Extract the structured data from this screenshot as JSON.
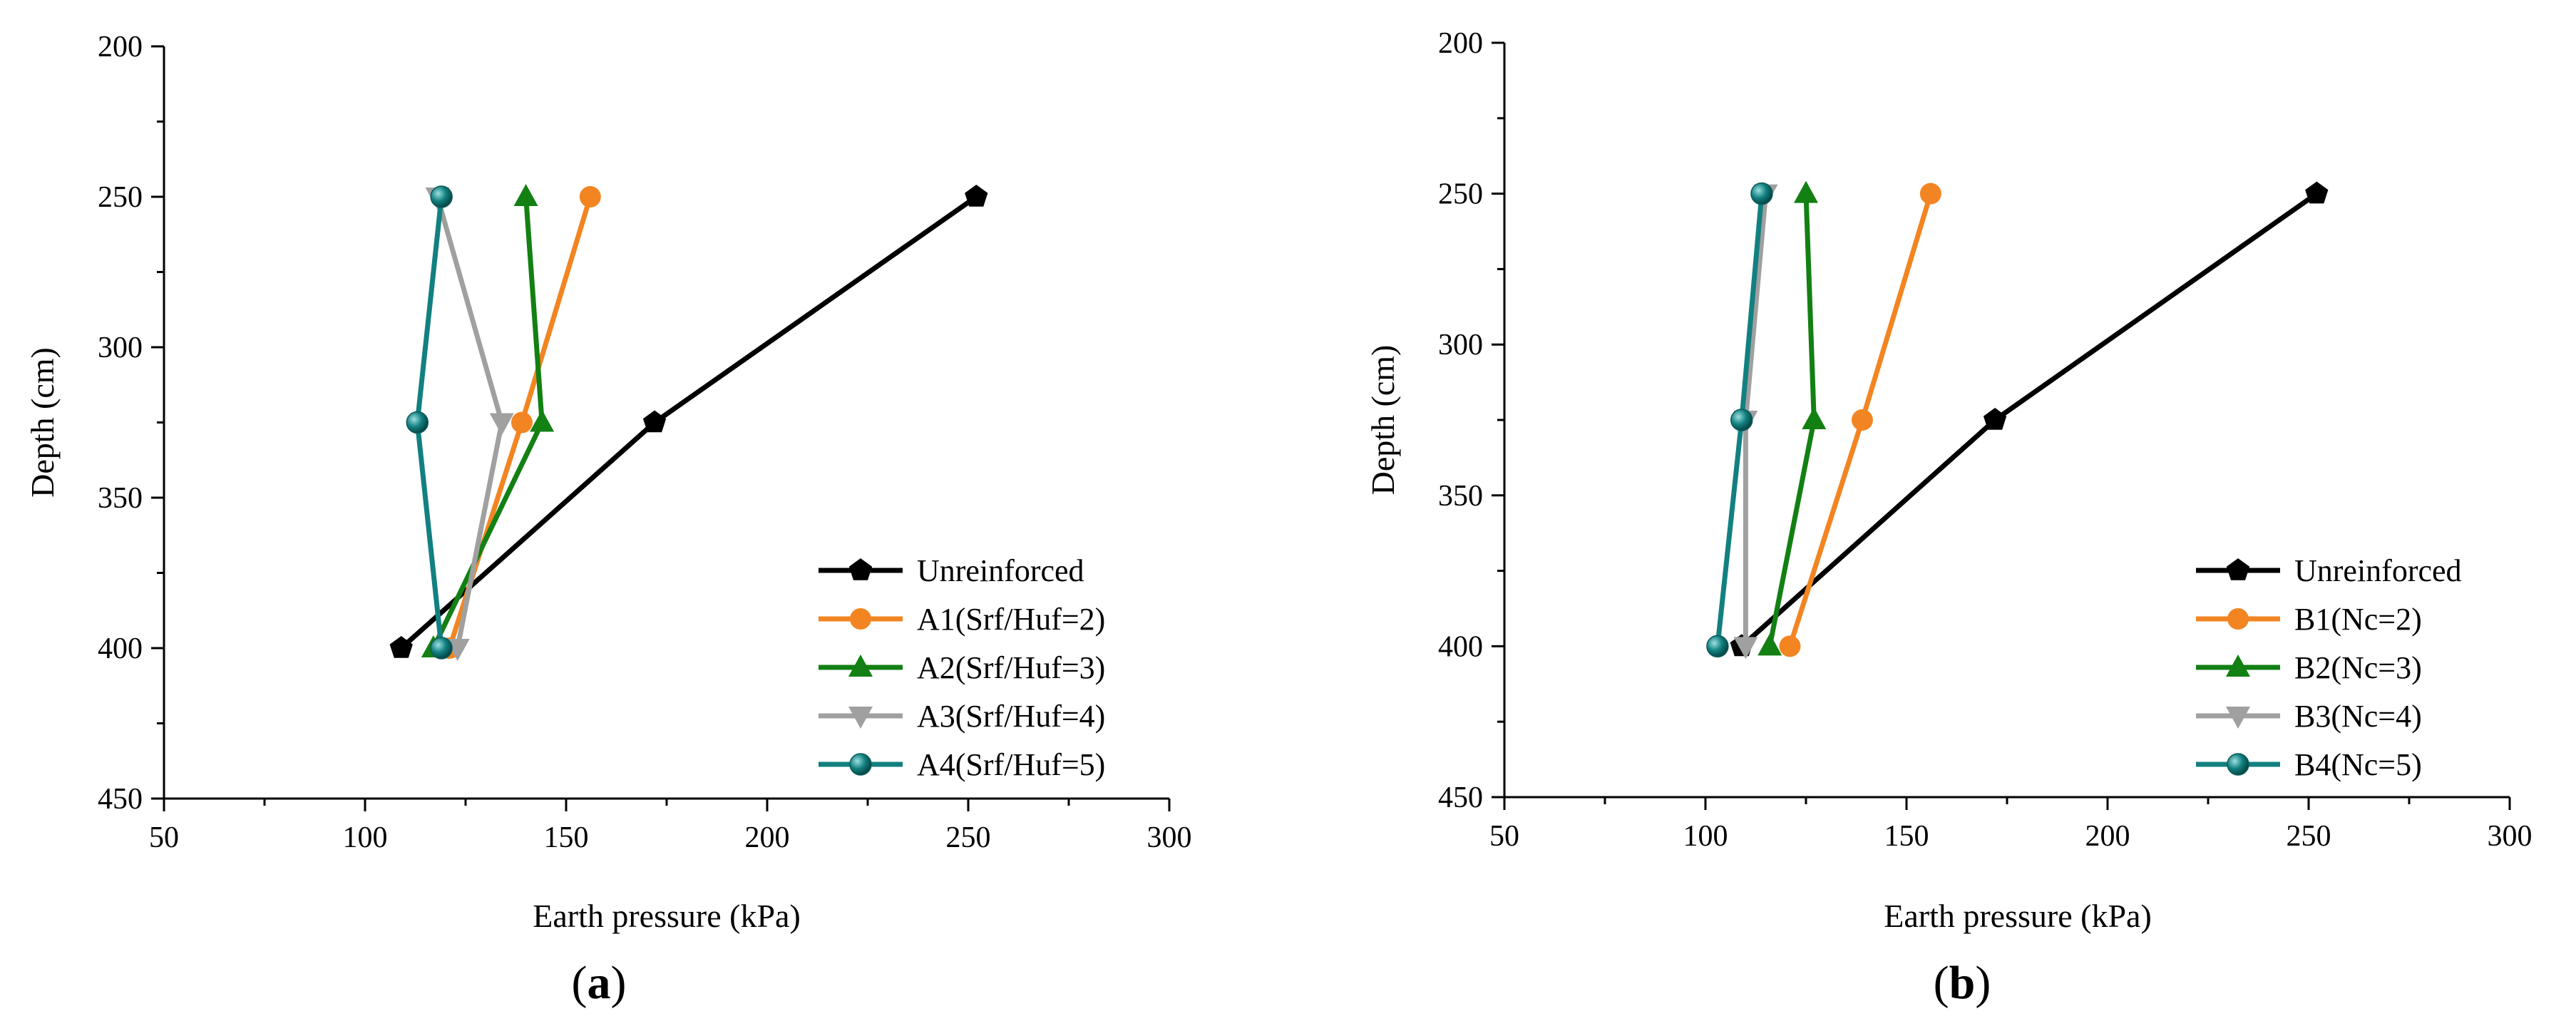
{
  "chart_data": [
    {
      "type": "line",
      "panel_label_open": "(",
      "panel_label_letter": "a",
      "panel_label_close": ")",
      "xlabel": "Earth pressure (kPa)",
      "ylabel": "Depth (cm)",
      "xlim": [
        50,
        300
      ],
      "ylim": [
        200,
        450
      ],
      "y_inverted": true,
      "xticks": [
        50,
        100,
        150,
        200,
        250,
        300
      ],
      "yticks": [
        200,
        250,
        300,
        350,
        400,
        450
      ],
      "legend_position": "bottom-right",
      "series": [
        {
          "name": "Unreinforced",
          "color": "#000000",
          "marker": "pentagon",
          "x": [
            252,
            172,
            109
          ],
          "y": [
            250,
            325,
            400
          ]
        },
        {
          "name": "A1(Srf/Huf=2)",
          "color": "#F28522",
          "marker": "circle",
          "x": [
            156,
            139,
            121
          ],
          "y": [
            250,
            325,
            400
          ]
        },
        {
          "name": "A2(Srf/Huf=3)",
          "color": "#128012",
          "marker": "triangle-up",
          "x": [
            140,
            144,
            117
          ],
          "y": [
            250,
            325,
            400
          ]
        },
        {
          "name": "A3(Srf/Huf=4)",
          "color": "#A0A0A0",
          "marker": "triangle-down",
          "x": [
            118,
            134,
            123
          ],
          "y": [
            250,
            325,
            400
          ]
        },
        {
          "name": "A4(Srf/Huf=5)",
          "color": "#128080",
          "marker": "sphere",
          "x": [
            119,
            113,
            119
          ],
          "y": [
            250,
            325,
            400
          ]
        }
      ]
    },
    {
      "type": "line",
      "panel_label_open": "(",
      "panel_label_letter": "b",
      "panel_label_close": ")",
      "xlabel": "Earth pressure (kPa)",
      "ylabel": "Depth (cm)",
      "xlim": [
        50,
        300
      ],
      "ylim": [
        200,
        450
      ],
      "y_inverted": true,
      "xticks": [
        50,
        100,
        150,
        200,
        250,
        300
      ],
      "yticks": [
        200,
        250,
        300,
        350,
        400,
        450
      ],
      "legend_position": "bottom-right",
      "series": [
        {
          "name": "Unreinforced",
          "color": "#000000",
          "marker": "pentagon",
          "x": [
            252,
            172,
            109
          ],
          "y": [
            250,
            325,
            400
          ]
        },
        {
          "name": "B1(Nc=2)",
          "color": "#F28522",
          "marker": "circle",
          "x": [
            156,
            139,
            121
          ],
          "y": [
            250,
            325,
            400
          ]
        },
        {
          "name": "B2(Nc=3)",
          "color": "#128012",
          "marker": "triangle-up",
          "x": [
            125,
            127,
            116
          ],
          "y": [
            250,
            325,
            400
          ]
        },
        {
          "name": "B3(Nc=4)",
          "color": "#A0A0A0",
          "marker": "triangle-down",
          "x": [
            115,
            110,
            110
          ],
          "y": [
            250,
            325,
            400
          ]
        },
        {
          "name": "B4(Nc=5)",
          "color": "#128080",
          "marker": "sphere",
          "x": [
            114,
            109,
            103
          ],
          "y": [
            250,
            325,
            400
          ]
        }
      ]
    }
  ]
}
